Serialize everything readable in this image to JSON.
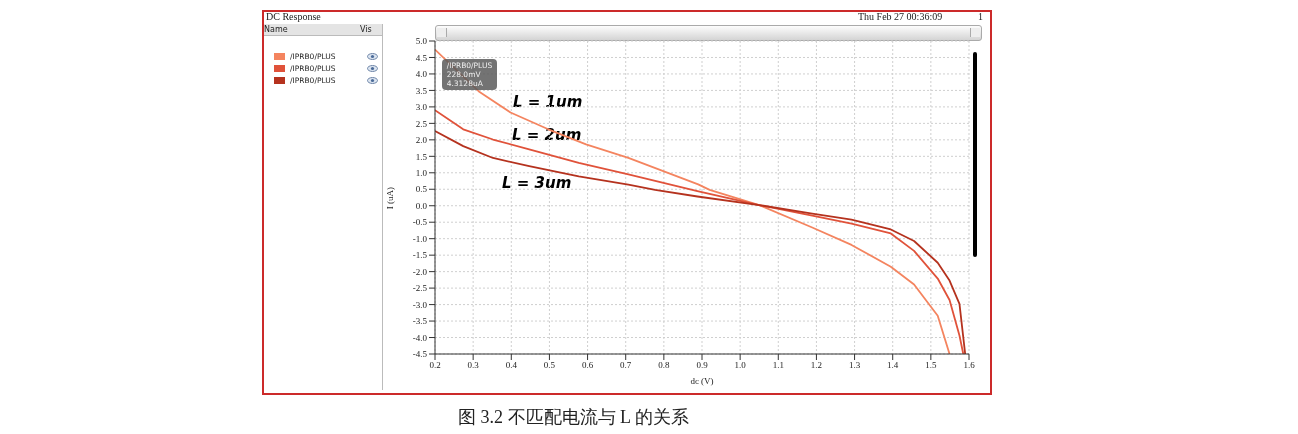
{
  "chart_data": {
    "type": "line",
    "title": "DC Response",
    "xlabel": "dc (V)",
    "ylabel": "I (uA)",
    "xlim": [
      0.2,
      1.6
    ],
    "xticks": [
      0.2,
      0.3,
      0.4,
      0.5,
      0.6,
      0.7,
      0.8,
      0.9,
      {
        "value": 1.0,
        "label": "1.0"
      },
      1.1,
      1.2,
      1.3,
      1.4,
      1.5,
      1.6
    ],
    "ylim": [
      -4.5,
      5.0
    ],
    "yticks": [
      {
        "value": -4.5,
        "label": "-4.5"
      },
      {
        "value": -4,
        "label": "-4.0"
      },
      {
        "value": -3.5,
        "label": "-3.5"
      },
      {
        "value": -3,
        "label": "-3.0"
      },
      {
        "value": -2.5,
        "label": "-2.5"
      },
      {
        "value": -2,
        "label": "-2.0"
      },
      {
        "value": -1.5,
        "label": "-1.5"
      },
      {
        "value": -1,
        "label": "-1.0"
      },
      {
        "value": -0.5,
        "label": "-0.5"
      },
      {
        "value": 0,
        "label": "0.0"
      },
      {
        "value": 0.5,
        "label": "0.5"
      },
      {
        "value": 1,
        "label": "1.0"
      },
      {
        "value": 1.5,
        "label": "1.5"
      },
      {
        "value": 2,
        "label": "2.0"
      },
      {
        "value": 2.5,
        "label": "2.5"
      },
      {
        "value": 3,
        "label": "3.0"
      },
      {
        "value": 3.5,
        "label": "3.5"
      },
      {
        "value": 4,
        "label": "4.0"
      },
      {
        "value": 4.5,
        "label": "4.5"
      },
      {
        "value": 5,
        "label": "5.0"
      }
    ],
    "grid": true,
    "legend": "left",
    "marker": "none",
    "line_style": "solid",
    "series": [
      {
        "name": "/IPRB0/PLUS",
        "color": "#f4845f",
        "x": [
          0.2,
          0.317,
          0.398,
          0.497,
          0.596,
          0.707,
          0.89,
          0.92,
          1.05,
          1.189,
          1.292,
          1.395,
          1.456,
          1.518,
          1.549
        ],
        "values": [
          4.74,
          3.45,
          2.83,
          2.32,
          1.86,
          1.45,
          0.65,
          0.48,
          0.02,
          -0.66,
          -1.19,
          -1.85,
          -2.39,
          -3.34,
          -4.5
        ]
      },
      {
        "name": "/IPRB0/PLUS",
        "color": "#e0523a",
        "x": [
          0.2,
          0.274,
          0.352,
          0.447,
          0.577,
          0.707,
          0.888,
          1.05,
          1.189,
          1.292,
          1.395,
          1.456,
          1.518,
          1.549,
          1.575,
          1.585
        ],
        "values": [
          2.9,
          2.32,
          2.01,
          1.71,
          1.3,
          0.95,
          0.44,
          0.02,
          -0.3,
          -0.54,
          -0.84,
          -1.37,
          -2.21,
          -2.86,
          -3.94,
          -4.5
        ]
      },
      {
        "name": "/IPRB0/PLUS",
        "color": "#b5321e",
        "x": [
          0.2,
          0.274,
          0.352,
          0.447,
          0.577,
          0.707,
          0.777,
          0.888,
          1.05,
          1.189,
          1.292,
          1.395,
          1.456,
          1.518,
          1.549,
          1.575,
          1.59
        ],
        "values": [
          2.27,
          1.81,
          1.45,
          1.2,
          0.89,
          0.64,
          0.48,
          0.28,
          0.02,
          -0.24,
          -0.42,
          -0.72,
          -1.07,
          -1.73,
          -2.27,
          -2.98,
          -4.5
        ]
      }
    ],
    "annotations": [
      "L = 1um",
      "L = 2um",
      "L = 3um",
      {
        "text": "/IPRB0/PLUS\n228.0mV\n4.3128uA",
        "x": 0.228,
        "y": 4.3128
      },
      "Thu Feb 27 00:36:09",
      "1",
      "Name",
      "Vis",
      "图 3.2  不匹配电流与 L 的关系"
    ]
  }
}
